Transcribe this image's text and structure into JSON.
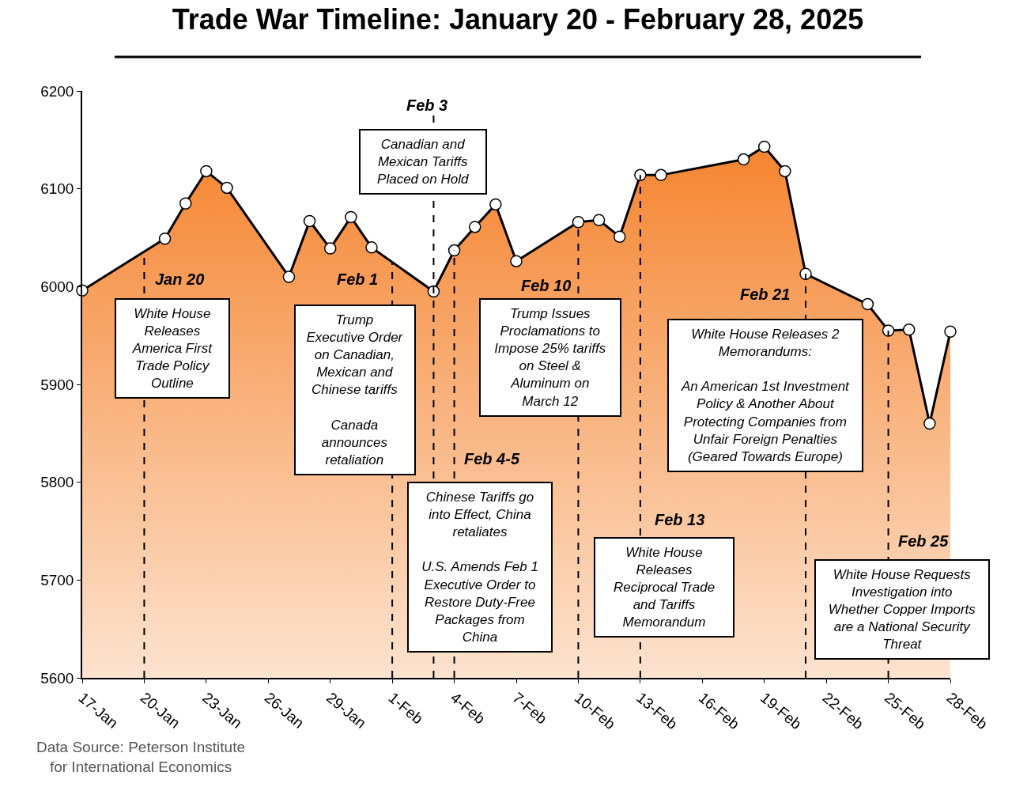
{
  "chart_data": {
    "type": "area",
    "title": "Trade War Timeline: January 20 - February 28, 2025",
    "x": [
      "2025-01-17",
      "2025-01-21",
      "2025-01-22",
      "2025-01-23",
      "2025-01-24",
      "2025-01-27",
      "2025-01-28",
      "2025-01-29",
      "2025-01-30",
      "2025-01-31",
      "2025-02-03",
      "2025-02-04",
      "2025-02-05",
      "2025-02-06",
      "2025-02-07",
      "2025-02-10",
      "2025-02-11",
      "2025-02-12",
      "2025-02-13",
      "2025-02-14",
      "2025-02-18",
      "2025-02-19",
      "2025-02-20",
      "2025-02-21",
      "2025-02-24",
      "2025-02-25",
      "2025-02-26",
      "2025-02-27",
      "2025-02-28"
    ],
    "series": [
      {
        "color": "#f47b20",
        "values": [
          5996,
          6049,
          6085,
          6118,
          6101,
          6010,
          6067,
          6039,
          6071,
          6040,
          5995,
          6037,
          6061,
          6084,
          6026,
          6066,
          6068,
          6051,
          6114,
          6114,
          6130,
          6143,
          6118,
          6013,
          5982,
          5955,
          5956,
          5860,
          5954
        ]
      }
    ],
    "xlim": [
      "2025-01-17",
      "2025-02-28"
    ],
    "xticks": [
      {
        "value": "2025-01-17",
        "label": "17-Jan"
      },
      {
        "value": "2025-01-20",
        "label": "20-Jan"
      },
      {
        "value": "2025-01-23",
        "label": "23-Jan"
      },
      {
        "value": "2025-01-26",
        "label": "26-Jan"
      },
      {
        "value": "2025-01-29",
        "label": "29-Jan"
      },
      {
        "value": "2025-02-01",
        "label": "1-Feb"
      },
      {
        "value": "2025-02-04",
        "label": "4-Feb"
      },
      {
        "value": "2025-02-07",
        "label": "7-Feb"
      },
      {
        "value": "2025-02-10",
        "label": "10-Feb"
      },
      {
        "value": "2025-02-13",
        "label": "13-Feb"
      },
      {
        "value": "2025-02-16",
        "label": "16-Feb"
      },
      {
        "value": "2025-02-19",
        "label": "19-Feb"
      },
      {
        "value": "2025-02-22",
        "label": "22-Feb"
      },
      {
        "value": "2025-02-25",
        "label": "25-Feb"
      },
      {
        "value": "2025-02-28",
        "label": "28-Feb"
      }
    ],
    "ylim": [
      5600,
      6200
    ],
    "yticks": [
      5600,
      5700,
      5800,
      5900,
      6000,
      6100,
      6200
    ],
    "marker": "circle",
    "line_style": "solid",
    "ref_lines": [
      {
        "axis": "x",
        "value": "2025-01-20",
        "label": "Jan 20",
        "line_style": "dashed"
      },
      {
        "axis": "x",
        "value": "2025-02-01",
        "label": "Feb 1",
        "line_style": "dashed"
      },
      {
        "axis": "x",
        "value": "2025-02-03",
        "label": "Feb 3",
        "line_style": "dashed"
      },
      {
        "axis": "x",
        "value": "2025-02-04",
        "label": "Feb 4-5",
        "line_style": "dashed"
      },
      {
        "axis": "x",
        "value": "2025-02-10",
        "label": "Feb 10",
        "line_style": "dashed"
      },
      {
        "axis": "x",
        "value": "2025-02-13",
        "label": "Feb 13",
        "line_style": "dashed"
      },
      {
        "axis": "x",
        "value": "2025-02-21",
        "label": "Feb 21",
        "line_style": "dashed"
      },
      {
        "axis": "x",
        "value": "2025-02-25",
        "label": "Feb 25",
        "line_style": "dashed"
      }
    ],
    "annotations": [
      "White House\nReleases\nAmerica First\nTrade Policy\nOutline",
      "Trump\nExecutive Order\non Canadian,\nMexican and\nChinese tariffs\n\nCanada\nannounces\nretaliation",
      "Canadian and\nMexican Tariffs\nPlaced on Hold",
      "Chinese Tariffs go\ninto Effect, China\nretaliates\n\nU.S. Amends Feb 1\nExecutive Order to\nRestore Duty-Free\nPackages from\nChina",
      "Trump Issues\nProclamations to\nImpose 25% tariffs\non Steel &\nAluminum on\nMarch 12",
      "White House\nReleases\nReciprocal Trade\nand Tariffs\nMemorandum",
      "White House Releases 2\nMemorandums:\n\nAn American 1st Investment\nPolicy & Another About\nProtecting Companies from\nUnfair Foreign Penalties\n(Geared Towards Europe)",
      "White House Requests\nInvestigation into\nWhether Copper Imports\nare a National Security\nThreat",
      "Data Source: Peterson Institute\nfor International Economics"
    ]
  }
}
